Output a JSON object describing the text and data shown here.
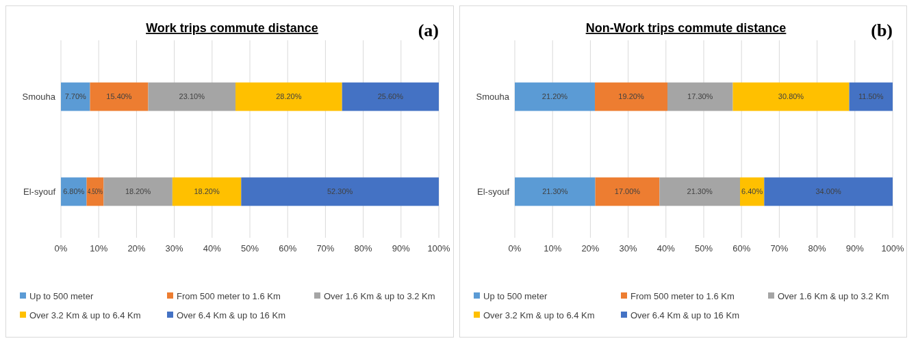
{
  "chart_data": [
    {
      "type": "bar",
      "orientation": "horizontal",
      "stacked": true,
      "title": "Work trips commute distance",
      "annotations": [
        "(a)"
      ],
      "categories": [
        "Smouha",
        "El-syouf"
      ],
      "series": [
        {
          "name": "Up to 500 meter",
          "color": "#5b9bd5",
          "values": [
            7.7,
            6.8
          ],
          "value_labels": [
            "7.70%",
            "6.80%"
          ]
        },
        {
          "name": "From 500 meter to 1.6 Km",
          "color": "#ed7d31",
          "values": [
            15.4,
            4.5
          ],
          "value_labels": [
            "15.40%",
            "4.50%"
          ]
        },
        {
          "name": "Over 1.6 Km & up to 3.2 Km",
          "color": "#a5a5a5",
          "values": [
            23.1,
            18.2
          ],
          "value_labels": [
            "23.10%",
            "18.20%"
          ]
        },
        {
          "name": "Over 3.2 Km & up to 6.4 Km",
          "color": "#ffc000",
          "values": [
            28.2,
            18.2
          ],
          "value_labels": [
            "28.20%",
            "18.20%"
          ]
        },
        {
          "name": "Over 6.4 Km & up to 16 Km",
          "color": "#4472c4",
          "values": [
            25.6,
            52.3
          ],
          "value_labels": [
            "25.60%",
            "52.30%"
          ]
        }
      ],
      "xlim": [
        0,
        100
      ],
      "xticks": [
        {
          "value": 0,
          "label": "0%"
        },
        {
          "value": 10,
          "label": "10%"
        },
        {
          "value": 20,
          "label": "20%"
        },
        {
          "value": 30,
          "label": "30%"
        },
        {
          "value": 40,
          "label": "40%"
        },
        {
          "value": 50,
          "label": "50%"
        },
        {
          "value": 60,
          "label": "60%"
        },
        {
          "value": 70,
          "label": "70%"
        },
        {
          "value": 80,
          "label": "80%"
        },
        {
          "value": 90,
          "label": "90%"
        },
        {
          "value": 100,
          "label": "100%"
        }
      ],
      "grid": "x",
      "legend": "bottom"
    },
    {
      "type": "bar",
      "orientation": "horizontal",
      "stacked": true,
      "title": "Non-Work trips commute distance",
      "annotations": [
        "(b)"
      ],
      "categories": [
        "Smouha",
        "El-syouf"
      ],
      "series": [
        {
          "name": "Up to 500 meter",
          "color": "#5b9bd5",
          "values": [
            21.2,
            21.3
          ],
          "value_labels": [
            "21.20%",
            "21.30%"
          ]
        },
        {
          "name": "From 500 meter to 1.6 Km",
          "color": "#ed7d31",
          "values": [
            19.2,
            17.0
          ],
          "value_labels": [
            "19.20%",
            "17.00%"
          ]
        },
        {
          "name": "Over 1.6 Km & up to 3.2 Km",
          "color": "#a5a5a5",
          "values": [
            17.3,
            21.3
          ],
          "value_labels": [
            "17.30%",
            "21.30%"
          ]
        },
        {
          "name": "Over 3.2 Km & up to 6.4 Km",
          "color": "#ffc000",
          "values": [
            30.8,
            6.4
          ],
          "value_labels": [
            "30.80%",
            "6.40%"
          ]
        },
        {
          "name": "Over 6.4 Km & up to 16 Km",
          "color": "#4472c4",
          "values": [
            11.5,
            34.0
          ],
          "value_labels": [
            "11.50%",
            "34.00%"
          ]
        }
      ],
      "xlim": [
        0,
        100
      ],
      "xticks": [
        {
          "value": 0,
          "label": "0%"
        },
        {
          "value": 10,
          "label": "10%"
        },
        {
          "value": 20,
          "label": "20%"
        },
        {
          "value": 30,
          "label": "30%"
        },
        {
          "value": 40,
          "label": "40%"
        },
        {
          "value": 50,
          "label": "50%"
        },
        {
          "value": 60,
          "label": "60%"
        },
        {
          "value": 70,
          "label": "70%"
        },
        {
          "value": 80,
          "label": "80%"
        },
        {
          "value": 90,
          "label": "90%"
        },
        {
          "value": 100,
          "label": "100%"
        }
      ],
      "grid": "x",
      "legend": "bottom"
    }
  ]
}
